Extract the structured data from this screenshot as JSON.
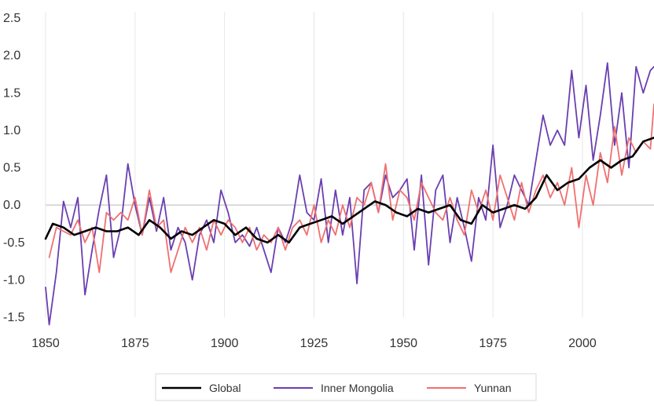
{
  "chart_data": {
    "type": "line",
    "title": "",
    "xlabel": "",
    "ylabel": "",
    "xlim": [
      1850,
      2020
    ],
    "ylim": [
      -1.5,
      2.5
    ],
    "x_ticks": [
      1850,
      1875,
      1900,
      1925,
      1950,
      1975,
      2000
    ],
    "y_ticks": [
      -1.5,
      -1.0,
      -0.5,
      0.0,
      0.5,
      1.0,
      1.5,
      2.0,
      2.5
    ],
    "x_tick_labels": [
      "1850",
      "1875",
      "1900",
      "1925",
      "1950",
      "1975",
      "2000"
    ],
    "y_tick_labels": [
      "-1.5",
      "-1.0",
      "-0.5",
      "0.0",
      "0.5",
      "1.0",
      "1.5",
      "2.0",
      "2.5"
    ],
    "grid": {
      "vertical": true,
      "horizontal": false,
      "zero_line": true
    },
    "legend": {
      "position": "bottom"
    },
    "series": [
      {
        "name": "Global",
        "color": "#000000",
        "x": [
          1850,
          1852,
          1855,
          1858,
          1861,
          1864,
          1867,
          1870,
          1873,
          1876,
          1879,
          1882,
          1885,
          1888,
          1891,
          1894,
          1897,
          1900,
          1903,
          1906,
          1909,
          1912,
          1915,
          1918,
          1921,
          1924,
          1927,
          1930,
          1933,
          1936,
          1939,
          1942,
          1945,
          1948,
          1951,
          1954,
          1957,
          1960,
          1963,
          1966,
          1969,
          1972,
          1975,
          1978,
          1981,
          1984,
          1987,
          1990,
          1993,
          1996,
          1999,
          2002,
          2005,
          2008,
          2011,
          2014,
          2017,
          2020
        ],
        "values": [
          -0.45,
          -0.25,
          -0.3,
          -0.4,
          -0.35,
          -0.3,
          -0.35,
          -0.35,
          -0.3,
          -0.4,
          -0.2,
          -0.3,
          -0.45,
          -0.35,
          -0.4,
          -0.3,
          -0.2,
          -0.25,
          -0.4,
          -0.3,
          -0.45,
          -0.5,
          -0.4,
          -0.5,
          -0.3,
          -0.25,
          -0.2,
          -0.15,
          -0.25,
          -0.15,
          -0.05,
          0.05,
          0.0,
          -0.1,
          -0.15,
          -0.05,
          -0.1,
          -0.05,
          0.0,
          -0.2,
          -0.25,
          0.0,
          -0.1,
          -0.05,
          0.0,
          -0.05,
          0.1,
          0.4,
          0.2,
          0.3,
          0.35,
          0.5,
          0.6,
          0.5,
          0.6,
          0.65,
          0.85,
          0.9
        ]
      },
      {
        "name": "Inner Mongolia",
        "color": "#6a3fb0",
        "x": [
          1850,
          1851,
          1853,
          1855,
          1857,
          1859,
          1861,
          1863,
          1865,
          1867,
          1869,
          1871,
          1873,
          1875,
          1877,
          1879,
          1881,
          1883,
          1885,
          1887,
          1889,
          1891,
          1893,
          1895,
          1897,
          1899,
          1901,
          1903,
          1905,
          1907,
          1909,
          1911,
          1913,
          1915,
          1917,
          1919,
          1921,
          1923,
          1925,
          1927,
          1929,
          1931,
          1933,
          1935,
          1937,
          1939,
          1941,
          1943,
          1945,
          1947,
          1949,
          1951,
          1953,
          1955,
          1957,
          1959,
          1961,
          1963,
          1965,
          1967,
          1969,
          1971,
          1973,
          1975,
          1977,
          1979,
          1981,
          1983,
          1985,
          1987,
          1989,
          1991,
          1993,
          1995,
          1997,
          1999,
          2001,
          2003,
          2005,
          2007,
          2009,
          2011,
          2013,
          2015,
          2017,
          2019,
          2020
        ],
        "values": [
          -1.1,
          -1.6,
          -0.9,
          0.05,
          -0.3,
          0.1,
          -1.2,
          -0.6,
          -0.05,
          0.4,
          -0.7,
          -0.3,
          0.55,
          0.0,
          -0.4,
          0.1,
          -0.35,
          0.1,
          -0.6,
          -0.3,
          -0.5,
          -1.0,
          -0.4,
          -0.2,
          -0.5,
          0.2,
          -0.1,
          -0.5,
          -0.4,
          -0.55,
          -0.3,
          -0.6,
          -0.9,
          -0.3,
          -0.5,
          -0.2,
          0.4,
          -0.1,
          -0.2,
          0.35,
          -0.5,
          0.2,
          -0.4,
          0.1,
          -1.05,
          0.2,
          0.3,
          -0.1,
          0.4,
          0.1,
          0.2,
          0.35,
          -0.6,
          0.4,
          -0.8,
          0.2,
          0.4,
          -0.5,
          0.1,
          -0.3,
          -0.75,
          0.1,
          -0.2,
          0.8,
          -0.3,
          0.0,
          0.4,
          0.2,
          0.0,
          0.6,
          1.2,
          0.8,
          1.0,
          0.8,
          1.8,
          0.9,
          1.6,
          0.6,
          1.2,
          1.9,
          0.8,
          1.5,
          0.5,
          1.85,
          1.5,
          1.8,
          1.85
        ]
      },
      {
        "name": "Yunnan",
        "color": "#f07070",
        "x": [
          1851,
          1853,
          1855,
          1857,
          1859,
          1861,
          1863,
          1865,
          1867,
          1869,
          1871,
          1873,
          1875,
          1877,
          1879,
          1881,
          1883,
          1885,
          1887,
          1889,
          1891,
          1893,
          1895,
          1897,
          1899,
          1901,
          1903,
          1905,
          1907,
          1909,
          1911,
          1913,
          1915,
          1917,
          1919,
          1921,
          1923,
          1925,
          1927,
          1929,
          1931,
          1933,
          1935,
          1937,
          1939,
          1941,
          1943,
          1945,
          1947,
          1949,
          1951,
          1953,
          1955,
          1957,
          1959,
          1961,
          1963,
          1965,
          1967,
          1969,
          1971,
          1973,
          1975,
          1977,
          1979,
          1981,
          1983,
          1985,
          1987,
          1989,
          1991,
          1993,
          1995,
          1997,
          1999,
          2001,
          2003,
          2005,
          2007,
          2009,
          2011,
          2013,
          2015,
          2017,
          2019,
          2020
        ],
        "values": [
          -0.7,
          -0.3,
          -0.35,
          -0.4,
          -0.2,
          -0.5,
          -0.3,
          -0.9,
          -0.1,
          -0.2,
          -0.1,
          -0.2,
          0.1,
          -0.4,
          0.2,
          -0.3,
          -0.2,
          -0.9,
          -0.6,
          -0.3,
          -0.5,
          -0.3,
          -0.6,
          -0.2,
          -0.4,
          -0.2,
          -0.3,
          -0.5,
          -0.3,
          -0.6,
          -0.4,
          -0.5,
          -0.3,
          -0.6,
          -0.3,
          -0.2,
          -0.4,
          0.0,
          -0.5,
          -0.2,
          -0.4,
          0.0,
          -0.3,
          0.1,
          0.0,
          0.3,
          -0.1,
          0.55,
          -0.2,
          0.2,
          0.1,
          -0.2,
          0.3,
          0.1,
          -0.1,
          -0.2,
          0.1,
          -0.2,
          -0.4,
          0.2,
          -0.1,
          0.2,
          -0.2,
          0.4,
          0.1,
          -0.2,
          0.3,
          -0.1,
          0.2,
          0.4,
          0.1,
          0.3,
          0.0,
          0.5,
          -0.3,
          0.4,
          0.0,
          0.7,
          0.3,
          1.05,
          0.4,
          0.9,
          0.7,
          0.85,
          0.75,
          1.35
        ]
      }
    ]
  }
}
